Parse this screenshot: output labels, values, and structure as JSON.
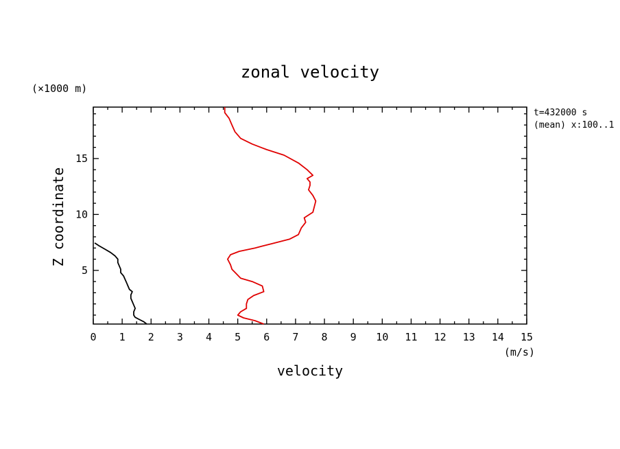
{
  "chart_data": {
    "type": "line",
    "title": "zonal velocity",
    "xlabel": "velocity",
    "xunit": "(m/s)",
    "ylabel": "Z coordinate",
    "yunit": "(×1000 m)",
    "annotation_time": "t=432000 s",
    "annotation_mean": "(mean) x:100..1",
    "xlim": [
      0,
      15
    ],
    "ylim": [
      0.2,
      19.6
    ],
    "xticks": [
      0,
      1,
      2,
      3,
      4,
      5,
      6,
      7,
      8,
      9,
      10,
      11,
      12,
      13,
      14,
      15
    ],
    "yticks": [
      5,
      10,
      15
    ],
    "series": [
      {
        "color": "#000000",
        "points": [
          [
            1.85,
            0.2
          ],
          [
            1.75,
            0.4
          ],
          [
            1.6,
            0.6
          ],
          [
            1.45,
            0.8
          ],
          [
            1.4,
            1.0
          ],
          [
            1.4,
            1.3
          ],
          [
            1.45,
            1.6
          ],
          [
            1.4,
            1.9
          ],
          [
            1.35,
            2.2
          ],
          [
            1.3,
            2.5
          ],
          [
            1.3,
            2.8
          ],
          [
            1.35,
            3.1
          ],
          [
            1.25,
            3.3
          ],
          [
            1.2,
            3.6
          ],
          [
            1.15,
            3.9
          ],
          [
            1.1,
            4.2
          ],
          [
            1.05,
            4.5
          ],
          [
            0.95,
            4.8
          ],
          [
            0.95,
            5.1
          ],
          [
            0.9,
            5.4
          ],
          [
            0.85,
            5.7
          ],
          [
            0.85,
            6.0
          ],
          [
            0.75,
            6.3
          ],
          [
            0.6,
            6.6
          ],
          [
            0.4,
            6.9
          ],
          [
            0.2,
            7.2
          ],
          [
            0.05,
            7.45
          ]
        ]
      },
      {
        "color": "#e00000",
        "points": [
          [
            5.9,
            0.2
          ],
          [
            5.6,
            0.5
          ],
          [
            5.2,
            0.75
          ],
          [
            5.0,
            1.0
          ],
          [
            5.1,
            1.3
          ],
          [
            5.3,
            1.6
          ],
          [
            5.3,
            2.0
          ],
          [
            5.35,
            2.4
          ],
          [
            5.55,
            2.75
          ],
          [
            5.9,
            3.1
          ],
          [
            5.85,
            3.6
          ],
          [
            5.5,
            4.0
          ],
          [
            5.1,
            4.3
          ],
          [
            4.95,
            4.7
          ],
          [
            4.8,
            5.1
          ],
          [
            4.75,
            5.5
          ],
          [
            4.65,
            6.0
          ],
          [
            4.75,
            6.4
          ],
          [
            5.05,
            6.7
          ],
          [
            5.6,
            7.0
          ],
          [
            6.2,
            7.4
          ],
          [
            6.8,
            7.8
          ],
          [
            7.1,
            8.2
          ],
          [
            7.2,
            8.8
          ],
          [
            7.35,
            9.3
          ],
          [
            7.3,
            9.7
          ],
          [
            7.6,
            10.2
          ],
          [
            7.65,
            10.7
          ],
          [
            7.7,
            11.2
          ],
          [
            7.6,
            11.7
          ],
          [
            7.45,
            12.2
          ],
          [
            7.5,
            12.6
          ],
          [
            7.5,
            12.9
          ],
          [
            7.4,
            13.2
          ],
          [
            7.6,
            13.5
          ],
          [
            7.4,
            14.0
          ],
          [
            7.1,
            14.6
          ],
          [
            6.6,
            15.3
          ],
          [
            6.0,
            15.8
          ],
          [
            5.5,
            16.3
          ],
          [
            5.1,
            16.8
          ],
          [
            4.9,
            17.4
          ],
          [
            4.8,
            18.0
          ],
          [
            4.7,
            18.6
          ],
          [
            4.55,
            19.1
          ],
          [
            4.55,
            19.6
          ]
        ]
      }
    ]
  }
}
